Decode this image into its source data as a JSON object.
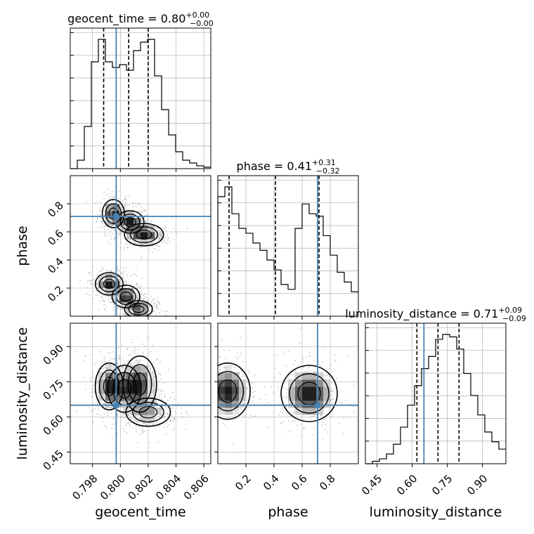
{
  "chart_data": {
    "type": "corner",
    "parameters": [
      {
        "name": "geocent_time",
        "axis_label": "geocent_time",
        "title": "geocent_time = 0.80",
        "title_sup": "+0.00",
        "title_sub": "−0.00",
        "range": [
          0.7964,
          0.8065
        ],
        "ticks": [
          0.798,
          0.8,
          0.802,
          0.804,
          0.806
        ],
        "tick_labels": [
          "0.798",
          "0.800",
          "0.802",
          "0.804",
          "0.806"
        ],
        "quantiles": [
          0.7988,
          0.8006,
          0.802
        ],
        "truth": 0.7997,
        "histogram": {
          "edges_start": 0.7964,
          "bin_width": 0.000505,
          "counts": [
            0,
            3,
            15,
            38,
            46,
            38,
            36,
            37,
            35,
            42,
            45,
            46,
            33,
            21,
            12,
            6,
            3,
            2,
            1,
            0.5
          ]
        }
      },
      {
        "name": "phase",
        "axis_label": "phase",
        "title": "phase = 0.41",
        "title_sup": "+0.31",
        "title_sub": "−0.32",
        "range": [
          0.0,
          1.0
        ],
        "ticks": [
          0.2,
          0.4,
          0.6,
          0.8
        ],
        "tick_labels": [
          "0.2",
          "0.4",
          "0.6",
          "0.8"
        ],
        "quantiles": [
          0.08,
          0.41,
          0.72
        ],
        "truth": 0.71,
        "histogram": {
          "edges_start": 0.0,
          "bin_width": 0.05,
          "counts": [
            49,
            53,
            42,
            36,
            34,
            30,
            27,
            23,
            19,
            13,
            11,
            36,
            46,
            42,
            41,
            33,
            25,
            18,
            14,
            10
          ]
        }
      },
      {
        "name": "luminosity_distance",
        "axis_label": "luminosity_distance",
        "title": "luminosity_distance = 0.71",
        "title_sup": "+0.09",
        "title_sub": "−0.09",
        "range": [
          0.4,
          1.0
        ],
        "ticks": [
          0.45,
          0.6,
          0.75,
          0.9
        ],
        "tick_labels": [
          "0.45",
          "0.60",
          "0.75",
          "0.90"
        ],
        "quantiles": [
          0.62,
          0.71,
          0.8
        ],
        "truth": 0.65,
        "histogram": {
          "edges_start": 0.4,
          "bin_width": 0.03,
          "counts": [
            0,
            1,
            2,
            4,
            8,
            15,
            24,
            32,
            39,
            44,
            51,
            53,
            52,
            47,
            37,
            28,
            20,
            13,
            9,
            6
          ]
        }
      }
    ],
    "pairs": [
      {
        "x": "geocent_time",
        "y": "phase",
        "truth": [
          0.7997,
          0.71
        ],
        "clusters": [
          {
            "x": 0.7995,
            "y": 0.73,
            "sx": 0.0004,
            "sy": 0.05,
            "w": 1
          },
          {
            "x": 0.8007,
            "y": 0.67,
            "sx": 0.0005,
            "sy": 0.04,
            "w": 1
          },
          {
            "x": 0.8017,
            "y": 0.58,
            "sx": 0.0007,
            "sy": 0.04,
            "w": 1
          },
          {
            "x": 0.7992,
            "y": 0.23,
            "sx": 0.0005,
            "sy": 0.04,
            "w": 1
          },
          {
            "x": 0.8004,
            "y": 0.14,
            "sx": 0.0005,
            "sy": 0.04,
            "w": 1
          },
          {
            "x": 0.8013,
            "y": 0.05,
            "sx": 0.0005,
            "sy": 0.03,
            "w": 1
          }
        ]
      },
      {
        "x": "geocent_time",
        "y": "luminosity_distance",
        "truth": [
          0.7997,
          0.65
        ],
        "clusters": [
          {
            "x": 0.7992,
            "y": 0.73,
            "sx": 0.0005,
            "sy": 0.05,
            "w": 1
          },
          {
            "x": 0.8003,
            "y": 0.72,
            "sx": 0.0006,
            "sy": 0.05,
            "w": 0.8
          },
          {
            "x": 0.8014,
            "y": 0.74,
            "sx": 0.0006,
            "sy": 0.06,
            "w": 1
          },
          {
            "x": 0.802,
            "y": 0.62,
            "sx": 0.0008,
            "sy": 0.03,
            "w": 0.6
          }
        ]
      },
      {
        "x": "phase",
        "y": "luminosity_distance",
        "truth": [
          0.71,
          0.65
        ],
        "clusters": [
          {
            "x": 0.07,
            "y": 0.71,
            "sx": 0.08,
            "sy": 0.06,
            "w": 1
          },
          {
            "x": 0.65,
            "y": 0.7,
            "sx": 0.1,
            "sy": 0.06,
            "w": 1
          }
        ]
      }
    ],
    "colors": {
      "truth": "#4682b4",
      "contour": "#000000",
      "samples": "#a0a0a0",
      "grid": "#b0b0b0"
    },
    "grid": true,
    "legend": "none"
  }
}
